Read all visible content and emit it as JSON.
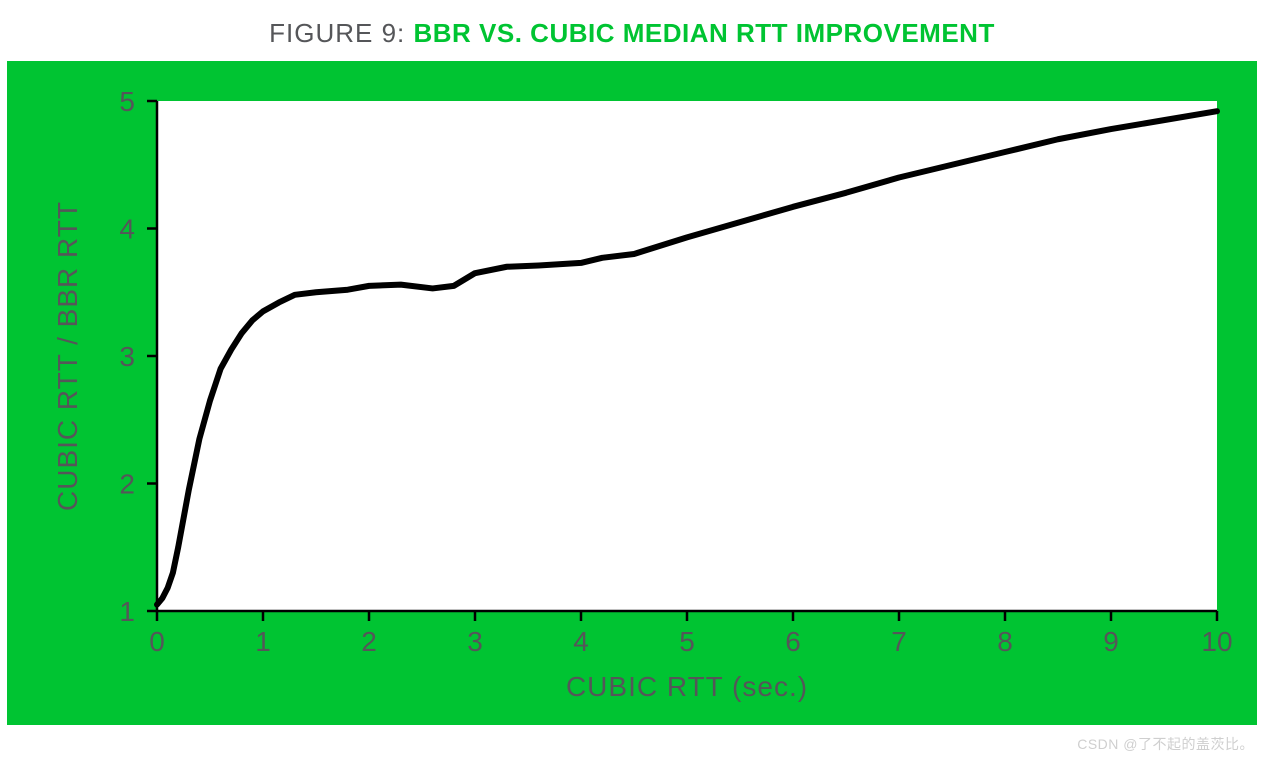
{
  "title": {
    "prefix": "FIGURE 9: ",
    "main": "BBR VS. CUBIC MEDIAN RTT IMPROVEMENT",
    "prefix_color": "#555659",
    "main_color": "#00c432",
    "fontsize": 26
  },
  "watermark": "CSDN @了不起的盖茨比。",
  "chart": {
    "type": "line",
    "frame_bg": "#00c432",
    "plot_bg": "#ffffff",
    "axis_color": "#000000",
    "axis_linewidth": 2.5,
    "line_color": "#000000",
    "line_width": 6,
    "tick_fontsize": 28,
    "tick_color": "#555659",
    "label_fontsize": 28,
    "label_color": "#555659",
    "label_fontfamily": "condensed",
    "xlabel": "CUBIC RTT (sec.)",
    "ylabel": "CUBIC RTT / BBR RTT",
    "xlim": [
      0,
      10
    ],
    "ylim": [
      1,
      5
    ],
    "xticks": [
      0,
      1,
      2,
      3,
      4,
      5,
      6,
      7,
      8,
      9,
      10
    ],
    "yticks": [
      1,
      2,
      3,
      4,
      5
    ],
    "data": [
      {
        "x": 0.0,
        "y": 1.05
      },
      {
        "x": 0.05,
        "y": 1.1
      },
      {
        "x": 0.1,
        "y": 1.18
      },
      {
        "x": 0.15,
        "y": 1.3
      },
      {
        "x": 0.2,
        "y": 1.5
      },
      {
        "x": 0.3,
        "y": 1.95
      },
      {
        "x": 0.4,
        "y": 2.35
      },
      {
        "x": 0.5,
        "y": 2.65
      },
      {
        "x": 0.6,
        "y": 2.9
      },
      {
        "x": 0.7,
        "y": 3.05
      },
      {
        "x": 0.8,
        "y": 3.18
      },
      {
        "x": 0.9,
        "y": 3.28
      },
      {
        "x": 1.0,
        "y": 3.35
      },
      {
        "x": 1.15,
        "y": 3.42
      },
      {
        "x": 1.3,
        "y": 3.48
      },
      {
        "x": 1.5,
        "y": 3.5
      },
      {
        "x": 1.8,
        "y": 3.52
      },
      {
        "x": 2.0,
        "y": 3.55
      },
      {
        "x": 2.3,
        "y": 3.56
      },
      {
        "x": 2.6,
        "y": 3.53
      },
      {
        "x": 2.8,
        "y": 3.55
      },
      {
        "x": 3.0,
        "y": 3.65
      },
      {
        "x": 3.3,
        "y": 3.7
      },
      {
        "x": 3.6,
        "y": 3.71
      },
      {
        "x": 4.0,
        "y": 3.73
      },
      {
        "x": 4.2,
        "y": 3.77
      },
      {
        "x": 4.5,
        "y": 3.8
      },
      {
        "x": 5.0,
        "y": 3.93
      },
      {
        "x": 5.5,
        "y": 4.05
      },
      {
        "x": 6.0,
        "y": 4.17
      },
      {
        "x": 6.5,
        "y": 4.28
      },
      {
        "x": 7.0,
        "y": 4.4
      },
      {
        "x": 7.5,
        "y": 4.5
      },
      {
        "x": 8.0,
        "y": 4.6
      },
      {
        "x": 8.5,
        "y": 4.7
      },
      {
        "x": 9.0,
        "y": 4.78
      },
      {
        "x": 9.5,
        "y": 4.85
      },
      {
        "x": 10.0,
        "y": 4.92
      }
    ]
  }
}
